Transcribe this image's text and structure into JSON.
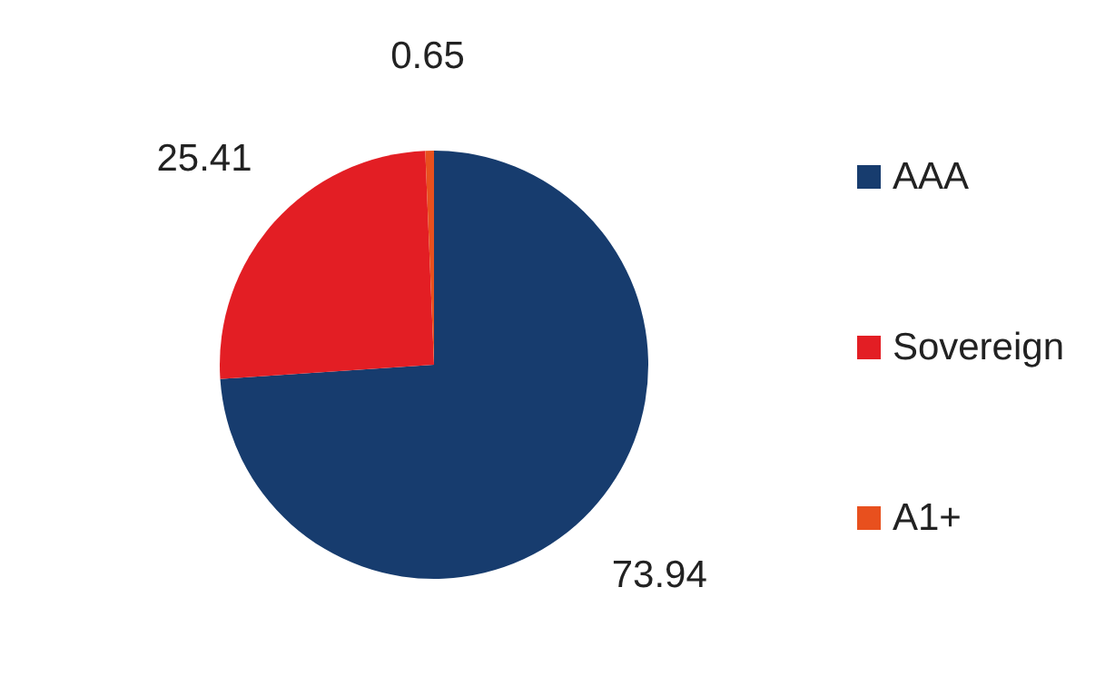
{
  "chart_data": {
    "type": "pie",
    "categories": [
      "AAA",
      "Sovereign",
      "A1+"
    ],
    "values": [
      73.94,
      25.41,
      0.65
    ],
    "colors": [
      "#173c6e",
      "#e31e24",
      "#e8501e"
    ],
    "data_labels": true,
    "legend": "right"
  }
}
